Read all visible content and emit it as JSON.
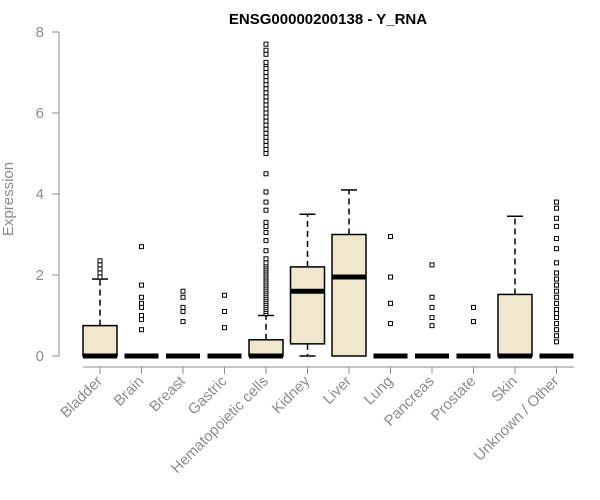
{
  "chart_data": {
    "type": "box",
    "title": "ENSG00000200138 - Y_RNA",
    "ylabel": "Expression",
    "xlabel": "",
    "ylim": [
      0,
      8
    ],
    "yticks": [
      0,
      2,
      4,
      6,
      8
    ],
    "box_fill": "#efe8cf",
    "box_stroke": "#000000",
    "categories": [
      "Bladder",
      "Brain",
      "Breast",
      "Gastric",
      "Hematopoietic cells",
      "Kidney",
      "Liver",
      "Lung",
      "Pancreas",
      "Prostate",
      "Skin",
      "Unknown / Other"
    ],
    "boxes": [
      {
        "q1": 0,
        "median": 0,
        "q3": 0.75,
        "whisker_low": 0,
        "whisker_high": 1.9,
        "outliers": [
          1.95,
          2.05,
          2.15,
          2.25,
          2.35
        ]
      },
      {
        "q1": 0,
        "median": 0,
        "q3": 0,
        "whisker_low": 0,
        "whisker_high": 0,
        "outliers": [
          0.65,
          0.9,
          1.0,
          1.2,
          1.3,
          1.45,
          1.75,
          2.7
        ]
      },
      {
        "q1": 0,
        "median": 0,
        "q3": 0,
        "whisker_low": 0,
        "whisker_high": 0,
        "outliers": [
          0.85,
          1.1,
          1.2,
          1.45,
          1.6
        ]
      },
      {
        "q1": 0,
        "median": 0,
        "q3": 0,
        "whisker_low": 0,
        "whisker_high": 0,
        "outliers": [
          0.7,
          1.1,
          1.5
        ]
      },
      {
        "q1": 0,
        "median": 0,
        "q3": 0.4,
        "whisker_low": 0,
        "whisker_high": 1.0,
        "outliers": [
          1.05,
          1.1,
          1.15,
          1.2,
          1.25,
          1.3,
          1.35,
          1.4,
          1.45,
          1.5,
          1.55,
          1.6,
          1.65,
          1.7,
          1.75,
          1.8,
          1.85,
          1.9,
          1.95,
          2.0,
          2.05,
          2.1,
          2.15,
          2.2,
          2.25,
          2.3,
          2.4,
          2.6,
          2.85,
          3.05,
          3.2,
          3.3,
          3.6,
          3.8,
          4.05,
          4.5,
          5.0,
          5.1,
          5.2,
          5.3,
          5.4,
          5.5,
          5.6,
          5.7,
          5.8,
          5.9,
          6.0,
          6.1,
          6.2,
          6.3,
          6.4,
          6.5,
          6.6,
          6.7,
          6.8,
          6.9,
          7.0,
          7.1,
          7.2,
          7.25,
          7.45,
          7.55,
          7.7
        ]
      },
      {
        "q1": 0.3,
        "median": 1.6,
        "q3": 2.2,
        "whisker_low": 0,
        "whisker_high": 3.5,
        "outliers": []
      },
      {
        "q1": 0,
        "median": 1.95,
        "q3": 3.0,
        "whisker_low": 0,
        "whisker_high": 4.1,
        "outliers": []
      },
      {
        "q1": 0,
        "median": 0,
        "q3": 0,
        "whisker_low": 0,
        "whisker_high": 0,
        "outliers": [
          0.8,
          1.3,
          1.95,
          2.95
        ]
      },
      {
        "q1": 0,
        "median": 0,
        "q3": 0,
        "whisker_low": 0,
        "whisker_high": 0,
        "outliers": [
          0.75,
          0.95,
          1.2,
          1.45,
          2.25
        ]
      },
      {
        "q1": 0,
        "median": 0,
        "q3": 0,
        "whisker_low": 0,
        "whisker_high": 0,
        "outliers": [
          0.85,
          1.2
        ]
      },
      {
        "q1": 0,
        "median": 0,
        "q3": 1.52,
        "whisker_low": 0,
        "whisker_high": 3.45,
        "outliers": []
      },
      {
        "q1": 0,
        "median": 0,
        "q3": 0,
        "whisker_low": 0,
        "whisker_high": 0,
        "outliers": [
          0.35,
          0.5,
          0.65,
          0.8,
          0.95,
          1.05,
          1.15,
          1.3,
          1.45,
          1.6,
          1.75,
          1.9,
          2.05,
          2.3,
          2.65,
          2.9,
          3.2,
          3.4,
          3.65,
          3.8
        ]
      }
    ]
  }
}
